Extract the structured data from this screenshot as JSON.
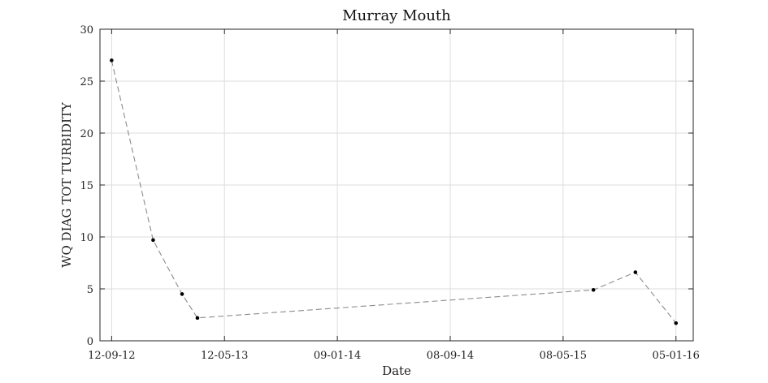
{
  "chart_data": {
    "type": "line",
    "title": "Murray Mouth",
    "xlabel": "Date",
    "ylabel": "WQ DIAG TOT TURBIDITY",
    "x_axis": {
      "type": "date",
      "range": [
        "2012-08-18",
        "2016-02-11"
      ],
      "ticks": [
        {
          "date": "2012-09-12",
          "label": "12-09-12"
        },
        {
          "date": "2013-05-12",
          "label": "12-05-13"
        },
        {
          "date": "2014-01-09",
          "label": "09-01-14"
        },
        {
          "date": "2014-09-08",
          "label": "08-09-14"
        },
        {
          "date": "2015-05-08",
          "label": "08-05-15"
        },
        {
          "date": "2016-01-05",
          "label": "05-01-16"
        }
      ]
    },
    "y_axis": {
      "range": [
        0,
        30
      ],
      "ticks": [
        0,
        5,
        10,
        15,
        20,
        25,
        30
      ]
    },
    "grid": true,
    "series": [
      {
        "line_style": "dashed",
        "line_color": "#8c8c8c",
        "marker_color": "#000000",
        "points": [
          {
            "x": "2012-09-12",
            "y": 27.0
          },
          {
            "x": "2012-12-10",
            "y": 9.7
          },
          {
            "x": "2013-02-10",
            "y": 4.5
          },
          {
            "x": "2013-03-15",
            "y": 2.2
          },
          {
            "x": "2015-07-12",
            "y": 4.9
          },
          {
            "x": "2015-10-10",
            "y": 6.6
          },
          {
            "x": "2016-01-05",
            "y": 1.7
          }
        ]
      }
    ]
  }
}
